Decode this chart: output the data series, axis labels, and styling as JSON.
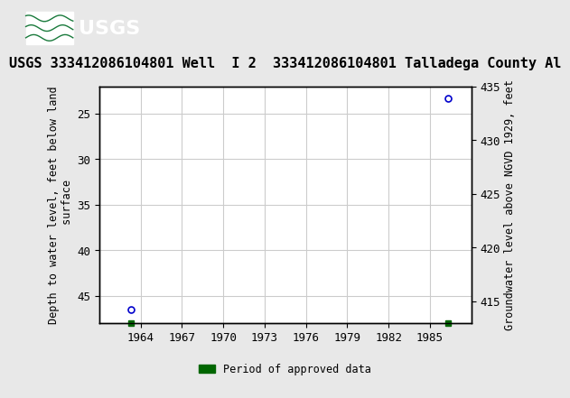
{
  "title": "USGS 333412086104801 Well  I 2  333412086104801 Talladega County Al",
  "ylabel_left": "Depth to water level, feet below land\n surface",
  "ylabel_right": "Groundwater level above NGVD 1929, feet",
  "header_color": "#1a7a3c",
  "header_text_color": "#ffffff",
  "background_color": "#e8e8e8",
  "plot_background": "#ffffff",
  "grid_color": "#cccccc",
  "point_color": "#0000cc",
  "point_marker": "o",
  "point_size": 5,
  "data_points": [
    {
      "year": 1963.3,
      "depth": 46.5
    },
    {
      "year": 1986.3,
      "depth": 23.3
    }
  ],
  "period_markers": [
    {
      "year": 1963.3
    },
    {
      "year": 1986.3
    }
  ],
  "xlim": [
    1961,
    1988
  ],
  "xticks": [
    1964,
    1967,
    1970,
    1973,
    1976,
    1979,
    1982,
    1985
  ],
  "ylim_left_top": 22,
  "ylim_left_bottom": 48,
  "yticks_left": [
    25,
    30,
    35,
    40,
    45
  ],
  "ylim_right_top": 435,
  "ylim_right_bottom": 413,
  "yticks_right": [
    435,
    430,
    425,
    420,
    415
  ],
  "legend_label": "Period of approved data",
  "legend_color": "#006600",
  "font_family": "monospace",
  "title_fontsize": 11,
  "axis_fontsize": 8.5,
  "tick_fontsize": 9
}
